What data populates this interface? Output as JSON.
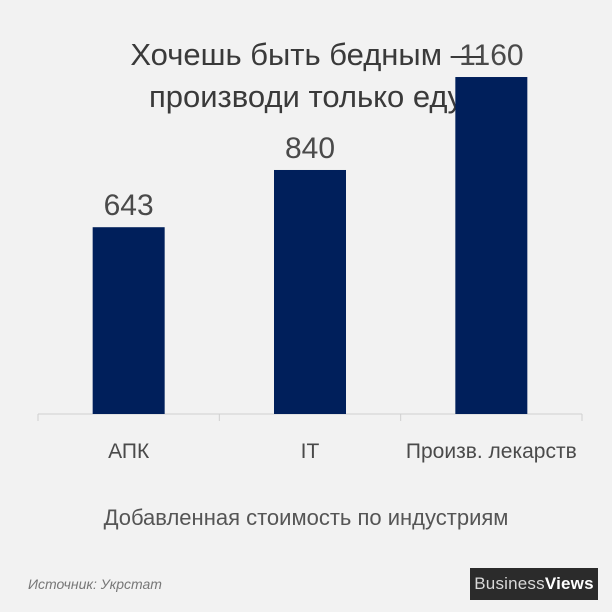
{
  "chart_data": {
    "type": "bar",
    "title": "Хочешь быть бедным — производи только еду",
    "title_lines": [
      "Хочешь быть бедным —",
      "производи только еду"
    ],
    "categories": [
      "АПК",
      "IT",
      "Произв. лекарств"
    ],
    "values": [
      643,
      840,
      1160
    ],
    "xlabel": "Добавленная стоимость по индустриям",
    "ylabel": "",
    "ylim": [
      0,
      1200
    ],
    "grid": false,
    "legend": "none",
    "colors": {
      "bar": "#001f5b",
      "axis": "#d0d0d0",
      "text": "#4a4a4a"
    }
  },
  "source": "Источник: Укрстат",
  "logo": {
    "part1": "Business",
    "part2": "Views"
  }
}
